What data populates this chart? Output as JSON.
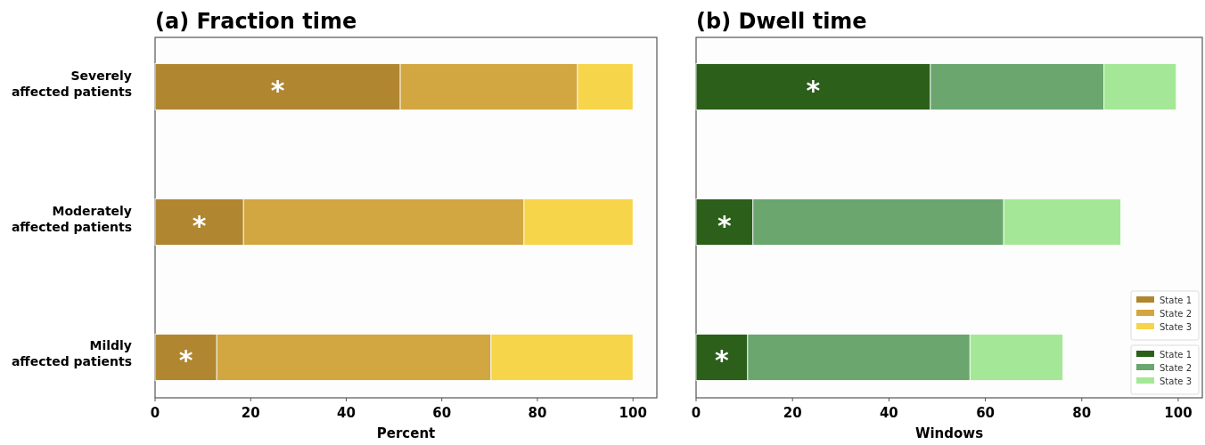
{
  "chart_data": [
    {
      "type": "bar",
      "title": "(a)   Fraction time",
      "xlabel": "Percent",
      "orientation": "horizontal",
      "stacked": true,
      "categories": [
        "Severely affected patients",
        "Moderately affected patients",
        "Mildly affected patients"
      ],
      "series": [
        {
          "name": "State 1",
          "color": "#b08630",
          "values": [
            51.3,
            18.5,
            12.9
          ]
        },
        {
          "name": "State 2",
          "color": "#d2a641",
          "values": [
            37.1,
            58.7,
            57.4
          ]
        },
        {
          "name": "State 3",
          "color": "#f6d54a",
          "values": [
            11.6,
            22.8,
            29.7
          ]
        }
      ],
      "xlim": [
        0,
        105
      ],
      "xticks": [
        0,
        20,
        40,
        60,
        80,
        100
      ],
      "grid": false,
      "legend": "bottom right",
      "annotations": [
        "*",
        "*",
        "*"
      ]
    },
    {
      "type": "bar",
      "title": "(b)   Dwell time",
      "xlabel": "Windows",
      "orientation": "horizontal",
      "stacked": true,
      "tick_labels": "x",
      "categories": [
        null,
        null,
        null
      ],
      "series": [
        {
          "name": "State 1",
          "color": "#2b5f1a",
          "values": [
            48.6,
            11.8,
            10.7
          ]
        },
        {
          "name": "State 2",
          "color": "#6aa66e",
          "values": [
            36.0,
            52.0,
            46.1
          ]
        },
        {
          "name": "State 3",
          "color": "#a4e897",
          "values": [
            15.0,
            24.3,
            19.3
          ]
        }
      ],
      "xlim": [
        0,
        105
      ],
      "xticks": [
        0,
        20,
        40,
        60,
        80,
        100
      ],
      "grid": false,
      "legend": "bottom right",
      "annotations": [
        "*",
        "*",
        "*"
      ]
    }
  ]
}
